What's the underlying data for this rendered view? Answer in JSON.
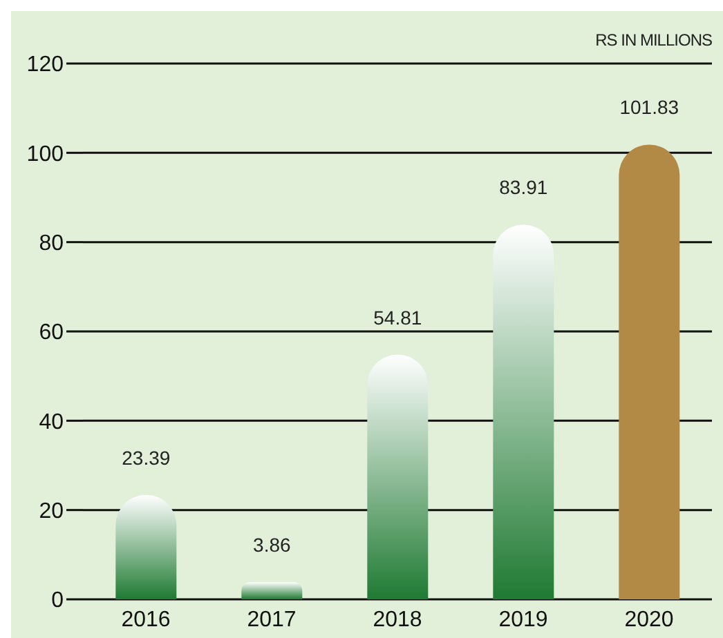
{
  "chart_data": {
    "type": "bar",
    "ylabel": "RS IN MILLIONS",
    "categories": [
      "2016",
      "2017",
      "2018",
      "2019",
      "2020"
    ],
    "values": [
      23.39,
      3.86,
      54.81,
      83.91,
      101.83
    ],
    "colors": [
      "#1f7a32",
      "#1f7a32",
      "#1f7a32",
      "#1f7a32",
      "#b38a45"
    ],
    "ylim": [
      0,
      120
    ],
    "yticks": [
      0,
      20,
      40,
      60,
      80,
      100,
      120
    ],
    "grid": "y",
    "data_labels": true
  }
}
